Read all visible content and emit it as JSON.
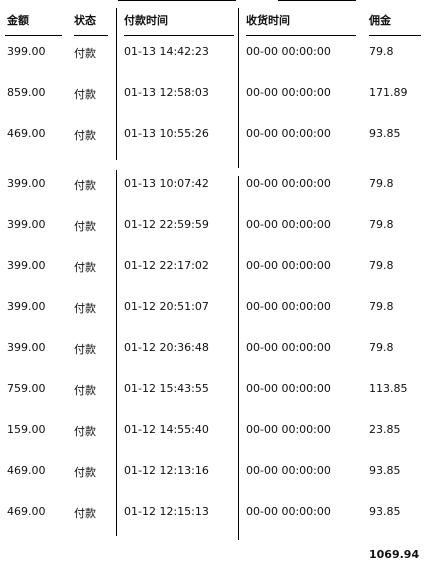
{
  "header": {
    "amount": "金额",
    "status": "状态",
    "pay_time": "付款时间",
    "receive_time": "收货时间",
    "commission": "佣金"
  },
  "rows": [
    {
      "amount": "399.00",
      "status": "付款",
      "pay_time": "01-13 14:42:23",
      "receive_time": "00-00 00:00:00",
      "commission": "79.8"
    },
    {
      "amount": "859.00",
      "status": "付款",
      "pay_time": "01-13 12:58:03",
      "receive_time": "00-00 00:00:00",
      "commission": "171.89"
    },
    {
      "amount": "469.00",
      "status": "付款",
      "pay_time": "01-13 10:55:26",
      "receive_time": "00-00 00:00:00",
      "commission": "93.85"
    },
    {
      "amount": "399.00",
      "status": "付款",
      "pay_time": "01-13 10:07:42",
      "receive_time": "00-00 00:00:00",
      "commission": "79.8"
    },
    {
      "amount": "399.00",
      "status": "付款",
      "pay_time": "01-12 22:59:59",
      "receive_time": "00-00 00:00:00",
      "commission": "79.8"
    },
    {
      "amount": "399.00",
      "status": "付款",
      "pay_time": "01-12 22:17:02",
      "receive_time": "00-00 00:00:00",
      "commission": "79.8"
    },
    {
      "amount": "399.00",
      "status": "付款",
      "pay_time": "01-12 20:51:07",
      "receive_time": "00-00 00:00:00",
      "commission": "79.8"
    },
    {
      "amount": "399.00",
      "status": "付款",
      "pay_time": "01-12 20:36:48",
      "receive_time": "00-00 00:00:00",
      "commission": "79.8"
    },
    {
      "amount": "759.00",
      "status": "付款",
      "pay_time": "01-12 15:43:55",
      "receive_time": "00-00 00:00:00",
      "commission": "113.85"
    },
    {
      "amount": "159.00",
      "status": "付款",
      "pay_time": "01-12 14:55:40",
      "receive_time": "00-00 00:00:00",
      "commission": "23.85"
    },
    {
      "amount": "469.00",
      "status": "付款",
      "pay_time": "01-12 12:13:16",
      "receive_time": "00-00 00:00:00",
      "commission": "93.85"
    },
    {
      "amount": "469.00",
      "status": "付款",
      "pay_time": "01-12 12:15:13",
      "receive_time": "00-00 00:00:00",
      "commission": "93.85"
    }
  ],
  "total_commission": "1069.94"
}
